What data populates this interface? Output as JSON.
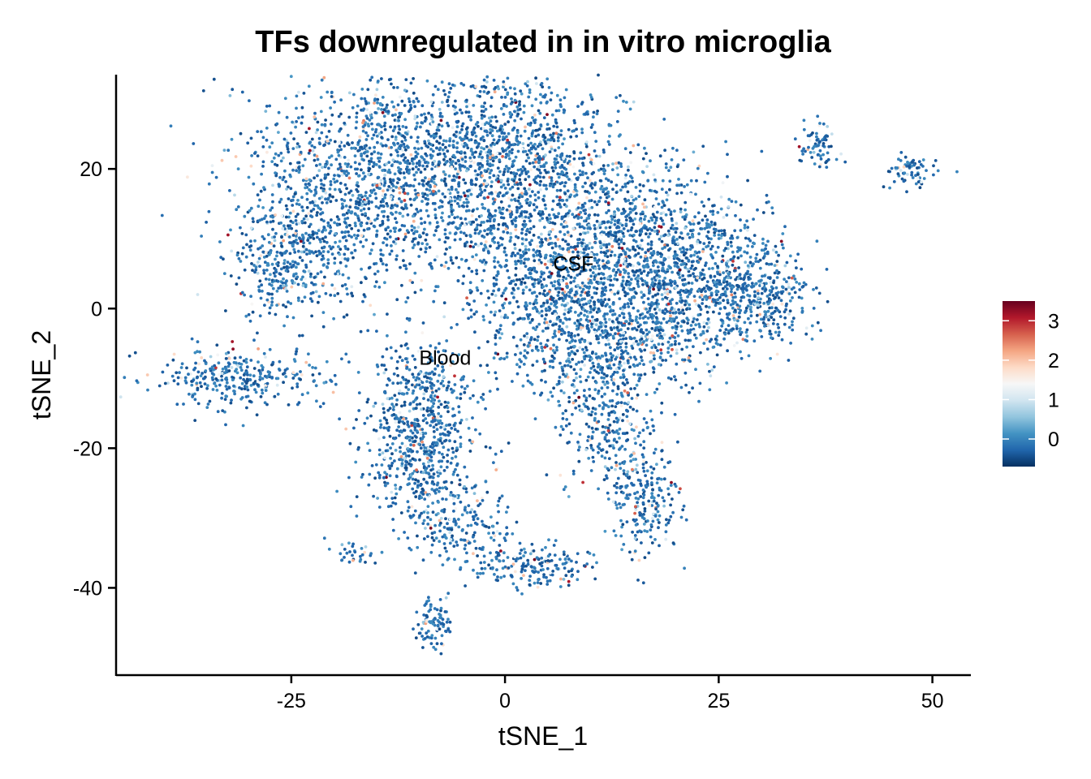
{
  "chart_data": {
    "type": "scatter",
    "title": "TFs downregulated in in vitro microglia",
    "xlabel": "tSNE_1",
    "ylabel": "tSNE_2",
    "xlim": [
      -45.5,
      54.5
    ],
    "ylim": [
      -52.5,
      33.5
    ],
    "x_ticks": [
      -25,
      0,
      25,
      50
    ],
    "x_tick_labels": [
      "-25",
      "0",
      "25",
      "50"
    ],
    "y_ticks": [
      -40,
      -20,
      0,
      20
    ],
    "y_tick_labels": [
      "-40",
      "-20",
      "0",
      "20"
    ],
    "grid": false,
    "legend": {
      "position": "right",
      "type": "colorbar",
      "min": -0.7,
      "max": 3.5,
      "ticks": [
        0,
        1,
        2,
        3
      ],
      "tick_labels": [
        "0",
        "1",
        "2",
        "3"
      ],
      "colors": [
        "#053061",
        "#2166ac",
        "#4393c3",
        "#92c5de",
        "#d1e5f0",
        "#f7f7f7",
        "#fddbc7",
        "#f4a582",
        "#d6604d",
        "#b2182b",
        "#67001f"
      ]
    },
    "cluster_labels": [
      {
        "text": "CSF",
        "x": 8,
        "y": 6.5
      },
      {
        "text": "Blood",
        "x": -7,
        "y": -7
      }
    ],
    "clusters": [
      {
        "cx": -12,
        "cy": 20,
        "sx": 9,
        "sy": 7,
        "n": 1500
      },
      {
        "cx": 2,
        "cy": 20,
        "sx": 6,
        "sy": 8,
        "n": 900
      },
      {
        "cx": -22,
        "cy": 10,
        "sx": 5,
        "sy": 6,
        "n": 400
      },
      {
        "cx": -26,
        "cy": 6,
        "sx": 2.5,
        "sy": 4,
        "n": 180
      },
      {
        "cx": 7,
        "cy": 5,
        "sx": 6,
        "sy": 6,
        "n": 700
      },
      {
        "cx": 16,
        "cy": 10,
        "sx": 5,
        "sy": 6,
        "n": 500
      },
      {
        "cx": 24,
        "cy": 6,
        "sx": 5,
        "sy": 5,
        "n": 500
      },
      {
        "cx": 30,
        "cy": 1,
        "sx": 3,
        "sy": 3,
        "n": 260
      },
      {
        "cx": 8,
        "cy": -3,
        "sx": 5,
        "sy": 5,
        "n": 450
      },
      {
        "cx": 18,
        "cy": -2,
        "sx": 5,
        "sy": 4,
        "n": 400
      },
      {
        "cx": 12,
        "cy": -15,
        "sx": 3,
        "sy": 5,
        "n": 300
      },
      {
        "cx": 16,
        "cy": -27,
        "sx": 2.2,
        "sy": 4,
        "n": 230
      },
      {
        "cx": -10,
        "cy": -12,
        "sx": 3,
        "sy": 4,
        "n": 300
      },
      {
        "cx": -10,
        "cy": -22,
        "sx": 3.5,
        "sy": 4.5,
        "n": 450
      },
      {
        "cx": -5,
        "cy": -31,
        "sx": 3,
        "sy": 3,
        "n": 170
      },
      {
        "cx": 3,
        "cy": -37,
        "sx": 3.5,
        "sy": 1.6,
        "n": 180
      },
      {
        "cx": -31,
        "cy": -10,
        "sx": 5,
        "sy": 2,
        "n": 320
      },
      {
        "cx": -8.5,
        "cy": -45,
        "sx": 1,
        "sy": 2,
        "n": 90
      },
      {
        "cx": 36.5,
        "cy": 23,
        "sx": 1,
        "sy": 2,
        "n": 70
      },
      {
        "cx": 47.5,
        "cy": 19.5,
        "sx": 1.5,
        "sy": 1.2,
        "n": 70
      },
      {
        "cx": -18,
        "cy": -35,
        "sx": 1.5,
        "sy": 1,
        "n": 30
      }
    ]
  }
}
